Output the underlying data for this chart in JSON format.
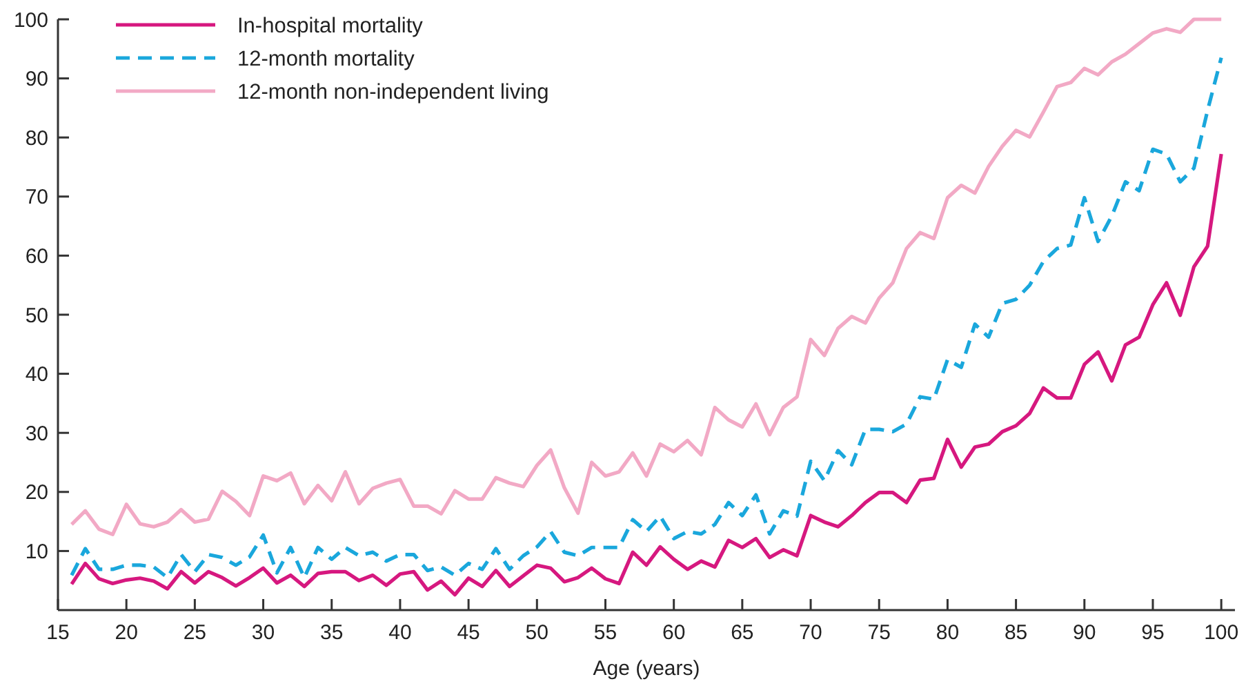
{
  "chart_data": {
    "type": "line",
    "xlabel": "Age (years)",
    "x": [
      16,
      17,
      18,
      19,
      20,
      21,
      22,
      23,
      24,
      25,
      26,
      27,
      28,
      29,
      30,
      31,
      32,
      33,
      34,
      35,
      36,
      37,
      38,
      39,
      40,
      41,
      42,
      43,
      44,
      45,
      46,
      47,
      48,
      49,
      50,
      51,
      52,
      53,
      54,
      55,
      56,
      57,
      58,
      59,
      60,
      61,
      62,
      63,
      64,
      65,
      66,
      67,
      68,
      69,
      70,
      71,
      72,
      73,
      74,
      75,
      76,
      77,
      78,
      79,
      80,
      81,
      82,
      83,
      84,
      85,
      86,
      87,
      88,
      89,
      90,
      91,
      92,
      93,
      94,
      95,
      96,
      97,
      98,
      99,
      100
    ],
    "series": [
      {
        "name": "In-hospital mortality",
        "color": "#d6187f",
        "line_style": "solid",
        "values": [
          4.4,
          7.9,
          5.3,
          4.5,
          5.1,
          5.4,
          4.9,
          3.6,
          6.5,
          4.6,
          6.5,
          5.5,
          4.1,
          5.5,
          7.1,
          4.6,
          5.9,
          4.0,
          6.2,
          6.5,
          6.5,
          5.0,
          5.9,
          4.2,
          6.1,
          6.5,
          3.4,
          4.9,
          2.6,
          5.4,
          4.0,
          6.7,
          4.0,
          5.8,
          7.6,
          7.1,
          4.8,
          5.5,
          7.1,
          5.3,
          4.5,
          9.8,
          7.6,
          10.7,
          8.6,
          6.9,
          8.3,
          7.3,
          11.8,
          10.6,
          12.1,
          8.9,
          10.2,
          9.2,
          16.0,
          14.9,
          14.1,
          16.0,
          18.2,
          19.9,
          19.9,
          18.2,
          22.0,
          22.3,
          28.9,
          24.2,
          27.6,
          28.1,
          30.2,
          31.2,
          33.3,
          37.6,
          35.9,
          35.9,
          41.6,
          43.7,
          38.8,
          44.9,
          46.2,
          51.7,
          55.4,
          49.9,
          58.1,
          61.6,
          77.2
        ]
      },
      {
        "name": "12-month mortality",
        "color": "#1aa7dc",
        "line_style": "dashed",
        "values": [
          5.9,
          10.4,
          6.9,
          6.9,
          7.6,
          7.6,
          7.3,
          5.5,
          9.4,
          6.5,
          9.4,
          8.9,
          7.6,
          9.0,
          12.7,
          6.3,
          10.6,
          5.5,
          10.6,
          8.6,
          10.6,
          9.2,
          9.8,
          8.3,
          9.4,
          9.4,
          6.7,
          7.3,
          5.9,
          7.9,
          6.9,
          10.4,
          6.9,
          9.2,
          10.7,
          13.3,
          9.8,
          9.2,
          10.6,
          10.6,
          10.6,
          15.3,
          13.3,
          15.9,
          12.1,
          13.3,
          12.9,
          14.5,
          18.2,
          16.0,
          19.5,
          12.9,
          16.8,
          15.9,
          25.2,
          21.9,
          27.0,
          24.6,
          30.6,
          30.6,
          30.2,
          31.5,
          36.1,
          35.7,
          42.4,
          41.1,
          48.4,
          46.2,
          51.9,
          52.6,
          55.0,
          59.0,
          61.2,
          61.8,
          69.8,
          62.4,
          66.7,
          72.5,
          71.0,
          78.0,
          77.2,
          72.5,
          74.8,
          84.6,
          93.5
        ]
      },
      {
        "name": "12-month non-independent living",
        "color": "#f2a9c5",
        "line_style": "solid",
        "values": [
          14.5,
          16.8,
          13.7,
          12.8,
          17.9,
          14.6,
          14.1,
          14.9,
          17.0,
          14.9,
          15.4,
          20.1,
          18.4,
          16.0,
          22.7,
          21.9,
          23.2,
          18.0,
          21.1,
          18.5,
          23.4,
          18.0,
          20.6,
          21.5,
          22.1,
          17.6,
          17.6,
          16.3,
          20.2,
          18.8,
          18.8,
          22.4,
          21.5,
          20.9,
          24.5,
          27.1,
          20.7,
          16.4,
          25.0,
          22.7,
          23.4,
          26.6,
          22.7,
          28.1,
          26.8,
          28.7,
          26.3,
          34.3,
          32.2,
          31.0,
          34.9,
          29.7,
          34.3,
          36.1,
          45.8,
          43.1,
          47.7,
          49.7,
          48.6,
          52.8,
          55.4,
          61.2,
          63.9,
          62.9,
          69.8,
          71.9,
          70.6,
          75.1,
          78.5,
          81.2,
          80.1,
          84.3,
          88.6,
          89.3,
          91.7,
          90.6,
          92.8,
          94.1,
          95.9,
          97.7,
          98.4,
          97.8,
          100,
          100,
          100
        ]
      }
    ],
    "xlim": [
      15,
      101
    ],
    "xticks": [
      15,
      20,
      25,
      30,
      35,
      40,
      45,
      50,
      55,
      60,
      65,
      70,
      75,
      80,
      85,
      90,
      95,
      100
    ],
    "ylim": [
      0,
      100
    ],
    "yticks": [
      10,
      20,
      30,
      40,
      50,
      60,
      70,
      80,
      90,
      100
    ],
    "legend": "top left"
  }
}
